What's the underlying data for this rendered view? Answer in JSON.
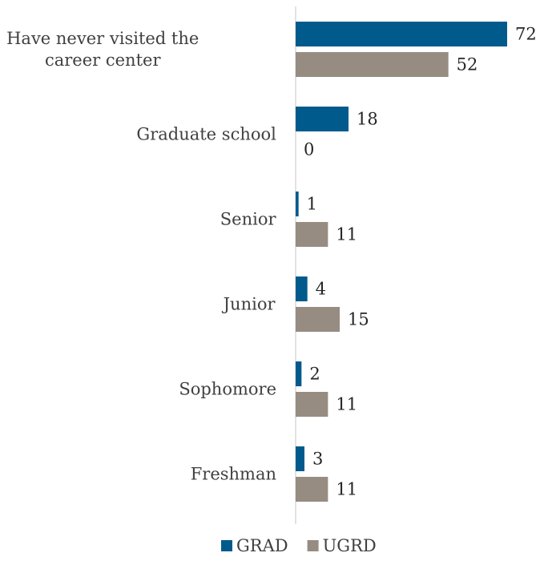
{
  "chart_data": {
    "type": "bar",
    "orientation": "horizontal",
    "categories": [
      "Have never visited the career center",
      "Graduate school",
      "Senior",
      "Junior",
      "Sophomore",
      "Freshman"
    ],
    "series": [
      {
        "name": "GRAD",
        "color": "#005a8c",
        "values": [
          72,
          18,
          1,
          4,
          2,
          3
        ]
      },
      {
        "name": "UGRD",
        "color": "#968c82",
        "values": [
          52,
          0,
          11,
          15,
          11,
          11
        ]
      }
    ],
    "xlim": [
      0,
      72
    ],
    "grid": false,
    "legend": "bottom",
    "axis_color": "#d9d9d9"
  }
}
